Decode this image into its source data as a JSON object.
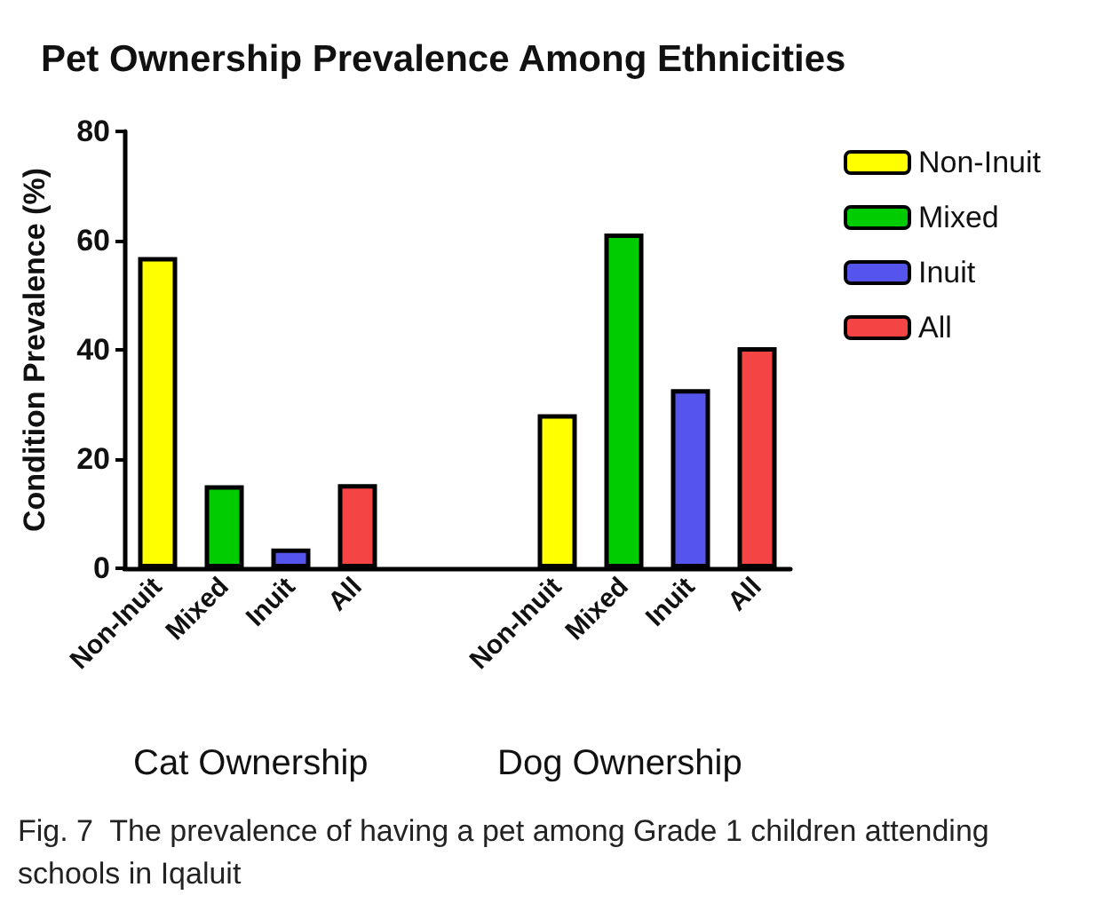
{
  "chart_data": {
    "type": "bar",
    "title": "Pet Ownership Prevalence Among Ethnicities",
    "ylabel": "Condition Prevalence (%)",
    "categories": [
      "Non-Inuit",
      "Mixed",
      "Inuit",
      "All",
      null,
      null,
      "Non-Inuit",
      "Mixed",
      "Inuit",
      "All"
    ],
    "series": [
      {
        "name": "Non-Inuit",
        "color": "#ffff00",
        "values": [
          57,
          null,
          null,
          null,
          null,
          null,
          28.2,
          null,
          null,
          null
        ]
      },
      {
        "name": "Mixed",
        "color": "#00cc00",
        "values": [
          null,
          15.2,
          null,
          null,
          null,
          null,
          null,
          61.3,
          null,
          null
        ]
      },
      {
        "name": "Inuit",
        "color": "#5555ee",
        "values": [
          null,
          null,
          3.6,
          null,
          null,
          null,
          null,
          null,
          32.8,
          null
        ]
      },
      {
        "name": "All",
        "color": "#f44444",
        "values": [
          null,
          null,
          null,
          15.4,
          null,
          null,
          null,
          null,
          null,
          40.5
        ]
      }
    ],
    "ylim": [
      0,
      80
    ],
    "yticks": [
      0,
      20,
      40,
      60,
      80
    ],
    "grid": false,
    "legend": "top right",
    "annotations": [
      "Cat Ownership",
      "Dog Ownership",
      "Fig. 7  The prevalence of having a pet among Grade 1 children attending schools in Iqaluit"
    ]
  }
}
